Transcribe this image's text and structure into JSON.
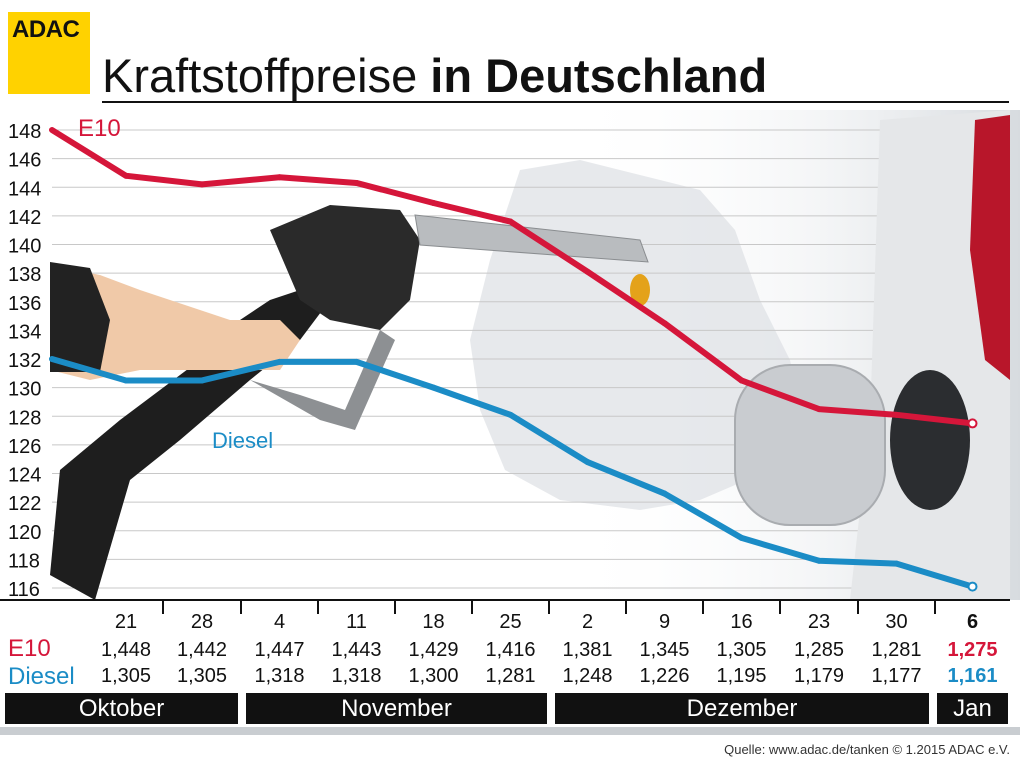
{
  "logo_text": "ADAC",
  "title_light": "Kraftstoffpreise",
  "title_bold": "in Deutschland",
  "source": "Quelle: www.adac.de/tanken   © 1.2015  ADAC e.V.",
  "colors": {
    "e10": "#d5163a",
    "diesel": "#1b8cc6",
    "grid": "#c8c8c8",
    "text": "#111111",
    "logo": "#ffd200"
  },
  "months": [
    "Oktober",
    "November",
    "Dezember",
    "Jan"
  ],
  "chart_data": {
    "type": "line",
    "ylabel": "",
    "xlabel": "",
    "ylim": [
      116,
      148
    ],
    "yticks": [
      148,
      146,
      144,
      142,
      140,
      138,
      136,
      134,
      132,
      130,
      128,
      126,
      124,
      122,
      120,
      118,
      116
    ],
    "categories": [
      "21",
      "28",
      "4",
      "11",
      "18",
      "25",
      "2",
      "9",
      "16",
      "23",
      "30",
      "6"
    ],
    "series": [
      {
        "name": "E10",
        "values": [
          144.8,
          144.2,
          144.7,
          144.3,
          142.9,
          141.6,
          138.1,
          134.5,
          130.5,
          128.5,
          128.1,
          127.5
        ],
        "labels": [
          "1,448",
          "1,442",
          "1,447",
          "1,443",
          "1,429",
          "1,416",
          "1,381",
          "1,345",
          "1,305",
          "1,285",
          "1,281",
          "1,275"
        ]
      },
      {
        "name": "Diesel",
        "values": [
          130.5,
          130.5,
          131.8,
          131.8,
          130.0,
          128.1,
          124.8,
          122.6,
          119.5,
          117.9,
          117.7,
          116.1
        ],
        "labels": [
          "1,305",
          "1,305",
          "1,318",
          "1,318",
          "1,300",
          "1,281",
          "1,248",
          "1,226",
          "1,195",
          "1,179",
          "1,177",
          "1,161"
        ]
      }
    ],
    "start_values": {
      "E10": 148.0,
      "Diesel": 132.0
    }
  }
}
